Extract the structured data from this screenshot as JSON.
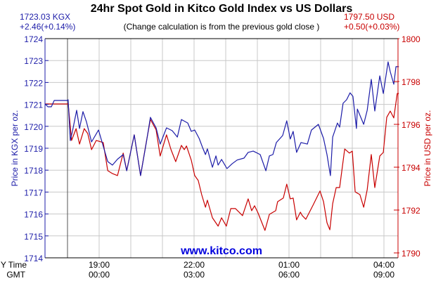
{
  "colors": {
    "kgx": "#1c1ca8",
    "usd": "#c80000",
    "grid": "#c8c8c8",
    "axis": "#000000",
    "site": "#0000dd"
  },
  "header": {
    "title": "24hr Spot Gold in Kitco Gold Index vs US Dollars",
    "subtitle": "(Change calculation is from the previous gold close )",
    "kgx_price": "1723.03 KGX",
    "kgx_change": "+2.46(+0.14%)",
    "usd_price": "1797.50 USD",
    "usd_change": "+0.50(+0.03%)"
  },
  "watermark": "www.kitco.com",
  "chart_data": {
    "type": "line",
    "title": "24hr Spot Gold in Kitco Gold Index vs US Dollars",
    "x_unit": "hours relative to 19:00 NY time",
    "xlim": [
      -1.71,
      9.47
    ],
    "session_marker_x": -1,
    "x_ticks": [
      {
        "x": 0,
        "ny": "19:00",
        "gmt": "00:00"
      },
      {
        "x": 3,
        "ny": "22:00",
        "gmt": "03:00"
      },
      {
        "x": 6,
        "ny": "01:00",
        "gmt": "06:00"
      },
      {
        "x": 9,
        "ny": "04:00",
        "gmt": "09:00"
      }
    ],
    "x_row_labels": {
      "ny": "NY Time",
      "gmt": "GMT"
    },
    "left_axis": {
      "label": "Price in KGX per oz.",
      "ylim": [
        1714,
        1724
      ],
      "ticks": [
        "1714",
        "1715",
        "1716",
        "1717",
        "1718",
        "1719",
        "1720",
        "1721",
        "1722",
        "1723",
        "1724"
      ]
    },
    "right_axis": {
      "label": "Price in USD per oz.",
      "ylim": [
        1790,
        1800
      ],
      "ticks": [
        "1790",
        "1792",
        "1794",
        "1796",
        "1798",
        "1800"
      ]
    },
    "grid": true,
    "series": [
      {
        "name": "KGX",
        "axis": "left",
        "points": [
          [
            -1.71,
            1721.02
          ],
          [
            -1.62,
            1720.89
          ],
          [
            -1.51,
            1720.89
          ],
          [
            -1.42,
            1721.18
          ],
          [
            -1.0,
            1721.18
          ],
          [
            -0.98,
            1721.21
          ],
          [
            -0.91,
            1719.35
          ],
          [
            -0.84,
            1719.8
          ],
          [
            -0.71,
            1720.73
          ],
          [
            -0.62,
            1719.9
          ],
          [
            -0.51,
            1720.67
          ],
          [
            -0.4,
            1720.2
          ],
          [
            -0.24,
            1719.29
          ],
          [
            -0.02,
            1719.83
          ],
          [
            0.27,
            1718.39
          ],
          [
            0.42,
            1718.23
          ],
          [
            0.58,
            1718.5
          ],
          [
            0.76,
            1718.71
          ],
          [
            0.87,
            1717.97
          ],
          [
            1.11,
            1719.61
          ],
          [
            1.31,
            1717.75
          ],
          [
            1.49,
            1719.26
          ],
          [
            1.62,
            1720.41
          ],
          [
            1.8,
            1719.93
          ],
          [
            1.93,
            1719.19
          ],
          [
            2.13,
            1719.93
          ],
          [
            2.31,
            1719.8
          ],
          [
            2.47,
            1719.51
          ],
          [
            2.6,
            1720.31
          ],
          [
            2.8,
            1720.15
          ],
          [
            2.91,
            1719.77
          ],
          [
            3.02,
            1719.83
          ],
          [
            3.16,
            1719.45
          ],
          [
            3.27,
            1719.03
          ],
          [
            3.36,
            1718.71
          ],
          [
            3.42,
            1718.97
          ],
          [
            3.58,
            1718.13
          ],
          [
            3.69,
            1718.65
          ],
          [
            3.76,
            1718.23
          ],
          [
            3.87,
            1718.49
          ],
          [
            4.04,
            1718.07
          ],
          [
            4.2,
            1718.29
          ],
          [
            4.36,
            1718.46
          ],
          [
            4.58,
            1718.55
          ],
          [
            4.71,
            1718.81
          ],
          [
            4.87,
            1718.87
          ],
          [
            5.09,
            1718.71
          ],
          [
            5.27,
            1717.97
          ],
          [
            5.38,
            1718.65
          ],
          [
            5.49,
            1718.71
          ],
          [
            5.6,
            1719.26
          ],
          [
            5.8,
            1719.58
          ],
          [
            5.93,
            1720.25
          ],
          [
            6.04,
            1719.42
          ],
          [
            6.13,
            1719.77
          ],
          [
            6.24,
            1718.81
          ],
          [
            6.38,
            1719.26
          ],
          [
            6.58,
            1719.19
          ],
          [
            6.71,
            1719.83
          ],
          [
            6.93,
            1720.09
          ],
          [
            7.09,
            1719.45
          ],
          [
            7.2,
            1718.71
          ],
          [
            7.31,
            1717.75
          ],
          [
            7.38,
            1719.51
          ],
          [
            7.53,
            1720.15
          ],
          [
            7.6,
            1719.96
          ],
          [
            7.71,
            1721.05
          ],
          [
            7.82,
            1721.21
          ],
          [
            7.93,
            1721.53
          ],
          [
            8.02,
            1721.37
          ],
          [
            8.13,
            1719.9
          ],
          [
            8.16,
            1720.79
          ],
          [
            8.36,
            1720.09
          ],
          [
            8.47,
            1720.73
          ],
          [
            8.6,
            1722.14
          ],
          [
            8.71,
            1720.7
          ],
          [
            8.87,
            1722.3
          ],
          [
            8.98,
            1721.5
          ],
          [
            9.13,
            1722.94
          ],
          [
            9.2,
            1722.49
          ],
          [
            9.31,
            1721.92
          ],
          [
            9.38,
            1722.72
          ],
          [
            9.47,
            1722.72
          ]
        ]
      },
      {
        "name": "USD",
        "axis": "right",
        "points": [
          [
            -1.71,
            1796.95
          ],
          [
            -1.0,
            1796.95
          ],
          [
            -0.98,
            1796.98
          ],
          [
            -0.87,
            1795.25
          ],
          [
            -0.73,
            1795.8
          ],
          [
            -0.62,
            1795.08
          ],
          [
            -0.47,
            1795.8
          ],
          [
            -0.36,
            1795.57
          ],
          [
            -0.24,
            1794.82
          ],
          [
            -0.09,
            1795.25
          ],
          [
            0.13,
            1795.15
          ],
          [
            0.27,
            1793.84
          ],
          [
            0.42,
            1793.7
          ],
          [
            0.58,
            1793.61
          ],
          [
            0.76,
            1794.66
          ],
          [
            0.87,
            1793.84
          ],
          [
            1.11,
            1795.51
          ],
          [
            1.31,
            1793.61
          ],
          [
            1.49,
            1795.18
          ],
          [
            1.62,
            1796.23
          ],
          [
            1.8,
            1795.74
          ],
          [
            1.93,
            1794.52
          ],
          [
            2.13,
            1795.51
          ],
          [
            2.27,
            1794.82
          ],
          [
            2.42,
            1794.26
          ],
          [
            2.6,
            1795.02
          ],
          [
            2.69,
            1794.82
          ],
          [
            2.76,
            1794.99
          ],
          [
            2.91,
            1794.33
          ],
          [
            3.02,
            1793.61
          ],
          [
            3.13,
            1793.38
          ],
          [
            3.24,
            1792.72
          ],
          [
            3.36,
            1792.13
          ],
          [
            3.42,
            1792.46
          ],
          [
            3.58,
            1791.64
          ],
          [
            3.76,
            1791.25
          ],
          [
            3.87,
            1791.64
          ],
          [
            4.02,
            1791.25
          ],
          [
            4.16,
            1792.07
          ],
          [
            4.31,
            1792.07
          ],
          [
            4.53,
            1791.74
          ],
          [
            4.71,
            1792.52
          ],
          [
            4.82,
            1791.97
          ],
          [
            4.91,
            1792.2
          ],
          [
            5.02,
            1791.87
          ],
          [
            5.24,
            1791.05
          ],
          [
            5.38,
            1791.8
          ],
          [
            5.58,
            1791.97
          ],
          [
            5.64,
            1792.39
          ],
          [
            5.82,
            1792.56
          ],
          [
            5.93,
            1793.21
          ],
          [
            6.04,
            1792.52
          ],
          [
            6.13,
            1792.56
          ],
          [
            6.24,
            1791.54
          ],
          [
            6.36,
            1791.9
          ],
          [
            6.42,
            1791.74
          ],
          [
            6.53,
            1791.57
          ],
          [
            6.76,
            1792.23
          ],
          [
            6.98,
            1792.89
          ],
          [
            7.09,
            1792.39
          ],
          [
            7.2,
            1791.41
          ],
          [
            7.29,
            1791.08
          ],
          [
            7.38,
            1792.3
          ],
          [
            7.49,
            1793.05
          ],
          [
            7.6,
            1793.05
          ],
          [
            7.76,
            1794.85
          ],
          [
            7.91,
            1794.66
          ],
          [
            8.0,
            1794.75
          ],
          [
            8.09,
            1792.85
          ],
          [
            8.24,
            1792.72
          ],
          [
            8.36,
            1792.13
          ],
          [
            8.47,
            1792.95
          ],
          [
            8.6,
            1794.59
          ],
          [
            8.71,
            1793.05
          ],
          [
            8.87,
            1794.52
          ],
          [
            8.98,
            1794.69
          ],
          [
            9.09,
            1796.33
          ],
          [
            9.2,
            1796.62
          ],
          [
            9.31,
            1796.3
          ],
          [
            9.42,
            1797.44
          ],
          [
            9.47,
            1797.44
          ]
        ]
      }
    ]
  }
}
